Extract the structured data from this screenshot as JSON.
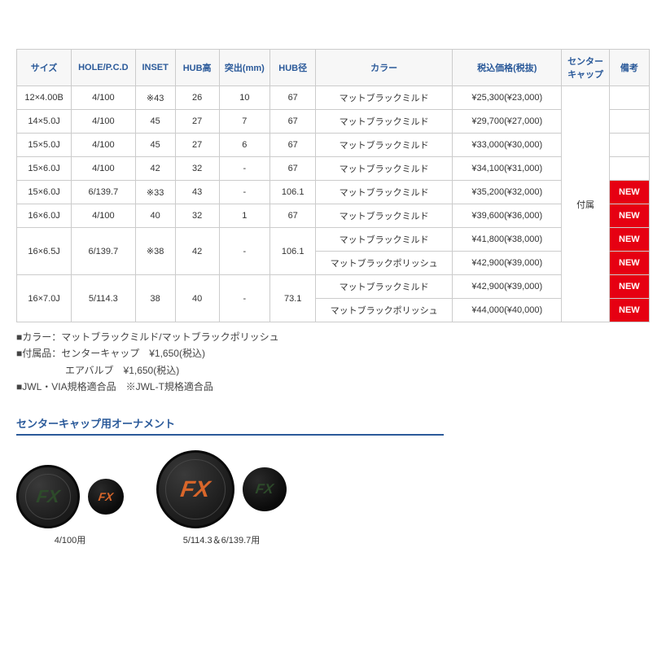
{
  "table": {
    "headers": [
      "サイズ",
      "HOLE/P.C.D",
      "INSET",
      "HUB高",
      "突出(mm)",
      "HUB径",
      "カラー",
      "税込価格(税抜)",
      "センターキャップ",
      "備考"
    ],
    "center_cap_value": "付属",
    "rows": [
      {
        "size": "12×4.00B",
        "hole": "4/100",
        "inset": "※43",
        "hub": "26",
        "tsuki": "10",
        "hubkei": "67",
        "color": "マットブラックミルド",
        "price": "¥25,300(¥23,000)",
        "new": false
      },
      {
        "size": "14×5.0J",
        "hole": "4/100",
        "inset": "45",
        "hub": "27",
        "tsuki": "7",
        "hubkei": "67",
        "color": "マットブラックミルド",
        "price": "¥29,700(¥27,000)",
        "new": false
      },
      {
        "size": "15×5.0J",
        "hole": "4/100",
        "inset": "45",
        "hub": "27",
        "tsuki": "6",
        "hubkei": "67",
        "color": "マットブラックミルド",
        "price": "¥33,000(¥30,000)",
        "new": false
      },
      {
        "size": "15×6.0J",
        "hole": "4/100",
        "inset": "42",
        "hub": "32",
        "tsuki": "-",
        "hubkei": "67",
        "color": "マットブラックミルド",
        "price": "¥34,100(¥31,000)",
        "new": false
      },
      {
        "size": "15×6.0J",
        "hole": "6/139.7",
        "inset": "※33",
        "hub": "43",
        "tsuki": "-",
        "hubkei": "106.1",
        "color": "マットブラックミルド",
        "price": "¥35,200(¥32,000)",
        "new": true
      },
      {
        "size": "16×6.0J",
        "hole": "4/100",
        "inset": "40",
        "hub": "32",
        "tsuki": "1",
        "hubkei": "67",
        "color": "マットブラックミルド",
        "price": "¥39,600(¥36,000)",
        "new": true
      }
    ],
    "group1": {
      "size": "16×6.5J",
      "hole": "6/139.7",
      "inset": "※38",
      "hub": "42",
      "tsuki": "-",
      "hubkei": "106.1",
      "sub": [
        {
          "color": "マットブラックミルド",
          "price": "¥41,800(¥38,000)",
          "new": true
        },
        {
          "color": "マットブラックポリッシュ",
          "price": "¥42,900(¥39,000)",
          "new": true
        }
      ]
    },
    "group2": {
      "size": "16×7.0J",
      "hole": "5/114.3",
      "inset": "38",
      "hub": "40",
      "tsuki": "-",
      "hubkei": "73.1",
      "sub": [
        {
          "color": "マットブラックミルド",
          "price": "¥42,900(¥39,000)",
          "new": true
        },
        {
          "color": "マットブラックポリッシュ",
          "price": "¥44,000(¥40,000)",
          "new": true
        }
      ]
    },
    "new_label": "NEW"
  },
  "notes": {
    "l1": "■カラー：マットブラックミルド/マットブラックポリッシュ",
    "l2": "■付属品：センターキャップ　¥1,650(税込)",
    "l3": "　　　　　エアバルブ　¥1,650(税込)",
    "l4": "■JWL・VIA規格適合品　※JWL-T規格適合品"
  },
  "section_title": "センターキャップ用オーナメント",
  "ornaments": {
    "g1_label": "4/100用",
    "g2_label": "5/114.3＆6/139.7用",
    "logo_green": "#2d4a2a",
    "logo_orange": "#d9662a"
  },
  "colors": {
    "header_text": "#2b5a9a",
    "border": "#cccccc",
    "new_bg": "#e60012",
    "new_text": "#ffffff"
  }
}
